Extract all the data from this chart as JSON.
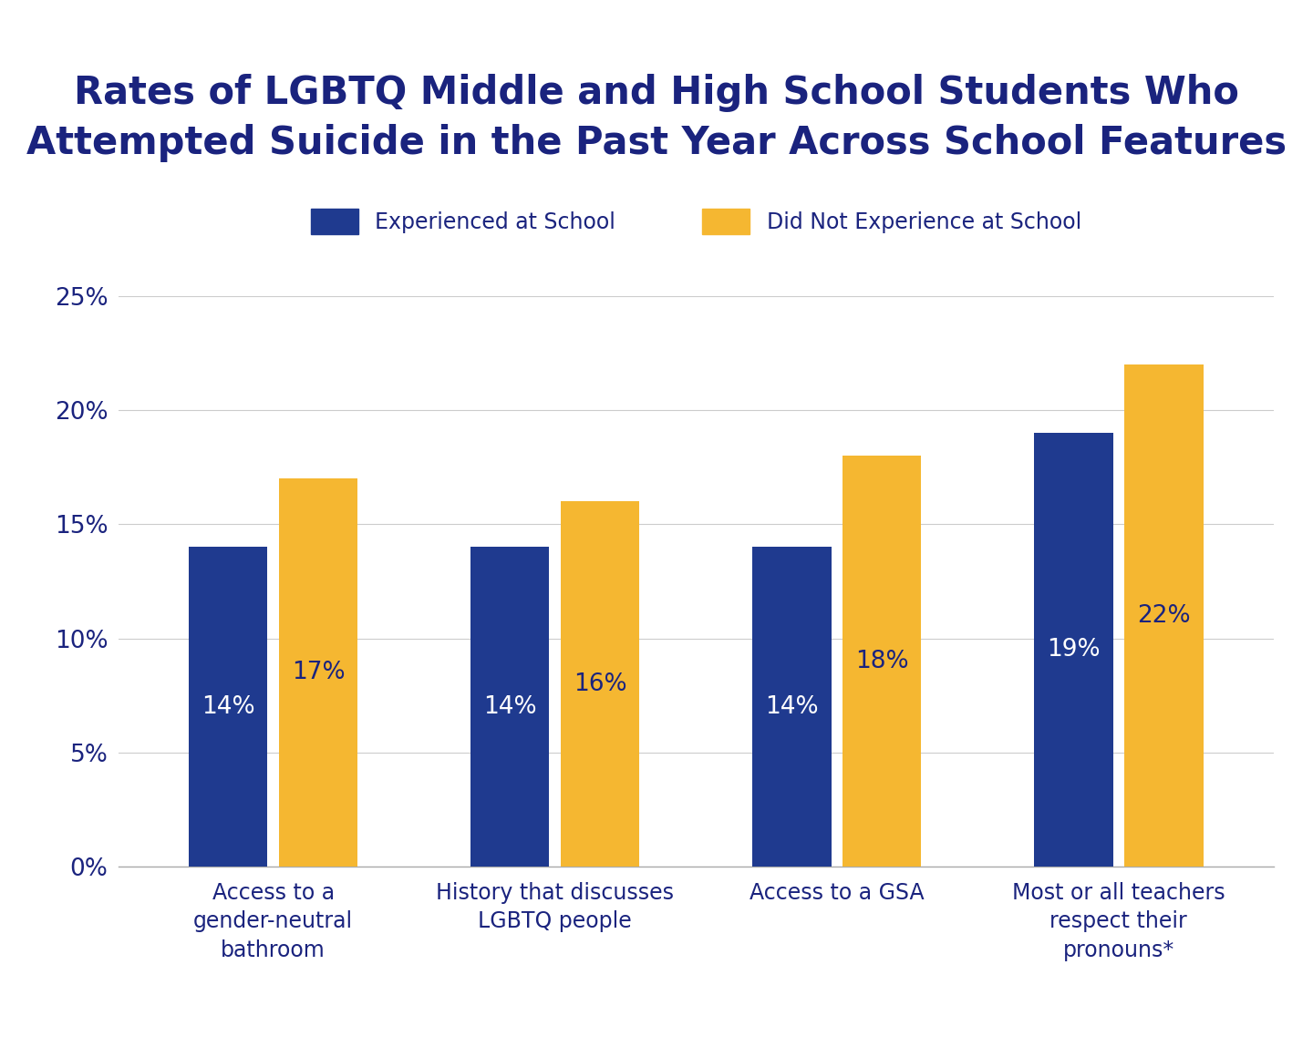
{
  "title": "Rates of LGBTQ Middle and High School Students Who\nAttempted Suicide in the Past Year Across School Features",
  "categories": [
    "Access to a\ngender-neutral\nbathroom",
    "History that discusses\nLGBTQ people",
    "Access to a GSA",
    "Most or all teachers\nrespect their\npronouns*"
  ],
  "experienced_values": [
    14,
    14,
    14,
    19
  ],
  "not_experienced_values": [
    17,
    16,
    18,
    22
  ],
  "experienced_color": "#1F3A8F",
  "not_experienced_color": "#F5B731",
  "text_color": "#1A237E",
  "bar_label_color_experienced": "#FFFFFF",
  "bar_label_color_not_experienced": "#1A237E",
  "legend_experienced": "Experienced at School",
  "legend_not_experienced": "Did Not Experience at School",
  "ylim": [
    0,
    25
  ],
  "yticks": [
    0,
    5,
    10,
    15,
    20,
    25
  ],
  "ytick_labels": [
    "0%",
    "5%",
    "10%",
    "15%",
    "20%",
    "25%"
  ],
  "background_color": "#FFFFFF",
  "title_fontsize": 30,
  "label_fontsize": 17,
  "tick_fontsize": 19,
  "bar_label_fontsize": 19,
  "legend_fontsize": 17
}
